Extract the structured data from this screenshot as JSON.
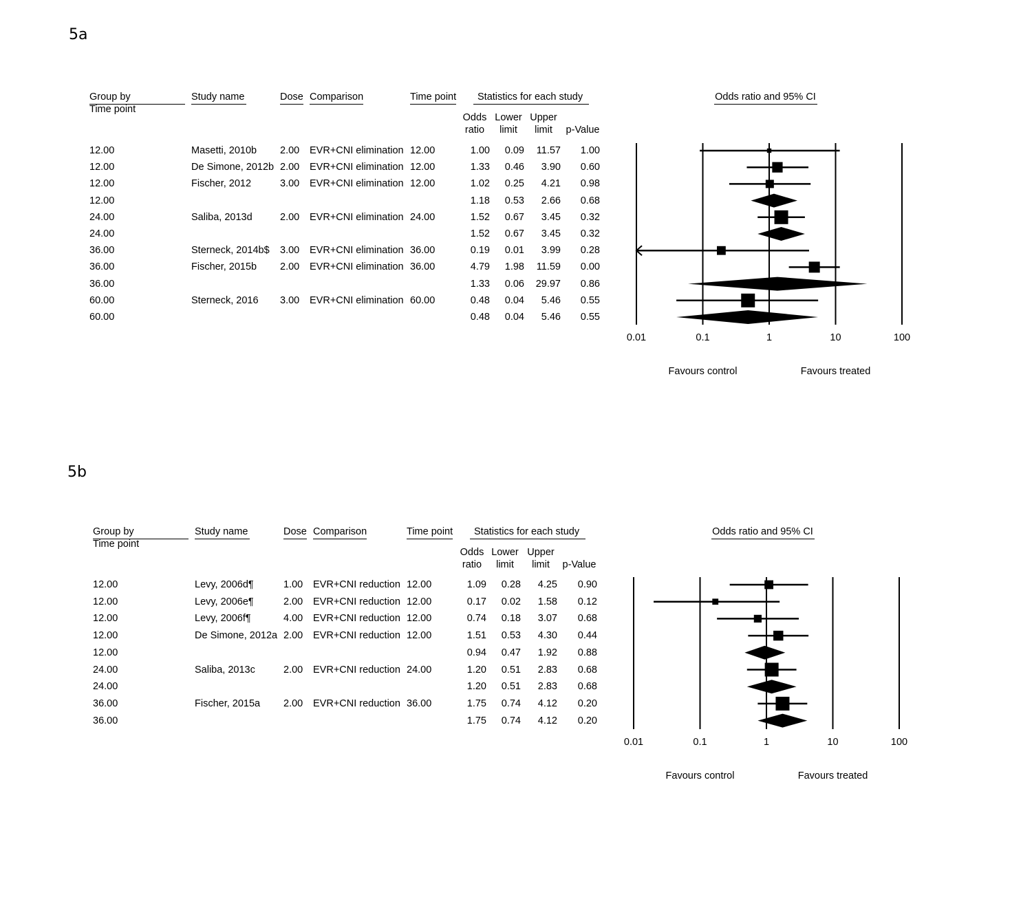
{
  "headers": {
    "group_by": "Group by",
    "time_point_sub": "Time point",
    "study_name": "Study name",
    "dose": "Dose",
    "comparison": "Comparison",
    "time_point": "Time point",
    "stats": "Statistics for each study",
    "odds_top": "Odds",
    "odds_bottom": "ratio",
    "lower_top": "Lower",
    "lower_bottom": "limit",
    "upper_top": "Upper",
    "upper_bottom": "limit",
    "pvalue": "p-Value",
    "plot_title": "Odds ratio and 95% CI"
  },
  "axis": {
    "ticks": [
      "0.01",
      "0.1",
      "1",
      "10",
      "100"
    ],
    "left_label": "Favours control",
    "right_label": "Favours treated"
  },
  "chart_data": [
    {
      "type": "forest",
      "panel": "5a",
      "scale": "log",
      "xlim": [
        0.01,
        100
      ],
      "columns": [
        "Group by Time point",
        "Study name",
        "Dose",
        "Comparison",
        "Time point",
        "Odds ratio",
        "Lower limit",
        "Upper limit",
        "p-Value"
      ],
      "rows": [
        {
          "group": "12.00",
          "study": "Masetti, 2010b",
          "dose": "2.00",
          "comparison": "EVR+CNI elimination",
          "time": "12.00",
          "or": "1.00",
          "lower": "0.09",
          "upper": "11.57",
          "p": "1.00",
          "kind": "study",
          "weight": 0.15
        },
        {
          "group": "12.00",
          "study": "De Simone, 2012b",
          "dose": "2.00",
          "comparison": "EVR+CNI elimination",
          "time": "12.00",
          "or": "1.33",
          "lower": "0.46",
          "upper": "3.90",
          "p": "0.60",
          "kind": "study",
          "weight": 0.7
        },
        {
          "group": "12.00",
          "study": "Fischer, 2012",
          "dose": "3.00",
          "comparison": "EVR+CNI elimination",
          "time": "12.00",
          "or": "1.02",
          "lower": "0.25",
          "upper": "4.21",
          "p": "0.98",
          "kind": "study",
          "weight": 0.5
        },
        {
          "group": "12.00",
          "study": "",
          "dose": "",
          "comparison": "",
          "time": "",
          "or": "1.18",
          "lower": "0.53",
          "upper": "2.66",
          "p": "0.68",
          "kind": "summary"
        },
        {
          "group": "24.00",
          "study": "Saliba, 2013d",
          "dose": "2.00",
          "comparison": "EVR+CNI elimination",
          "time": "24.00",
          "or": "1.52",
          "lower": "0.67",
          "upper": "3.45",
          "p": "0.32",
          "kind": "study",
          "weight": 1.0
        },
        {
          "group": "24.00",
          "study": "",
          "dose": "",
          "comparison": "",
          "time": "",
          "or": "1.52",
          "lower": "0.67",
          "upper": "3.45",
          "p": "0.32",
          "kind": "summary"
        },
        {
          "group": "36.00",
          "study": "Sterneck, 2014b$",
          "dose": "3.00",
          "comparison": "EVR+CNI elimination",
          "time": "36.00",
          "or": "0.19",
          "lower": "0.01",
          "upper": "3.99",
          "p": "0.28",
          "kind": "study",
          "weight": 0.55,
          "arrow_left": true
        },
        {
          "group": "36.00",
          "study": "Fischer, 2015b",
          "dose": "2.00",
          "comparison": "EVR+CNI elimination",
          "time": "36.00",
          "or": "4.79",
          "lower": "1.98",
          "upper": "11.59",
          "p": "0.00",
          "kind": "study",
          "weight": 0.75
        },
        {
          "group": "36.00",
          "study": "",
          "dose": "",
          "comparison": "",
          "time": "",
          "or": "1.33",
          "lower": "0.06",
          "upper": "29.97",
          "p": "0.86",
          "kind": "summary"
        },
        {
          "group": "60.00",
          "study": "Sterneck, 2016",
          "dose": "3.00",
          "comparison": "EVR+CNI elimination",
          "time": "60.00",
          "or": "0.48",
          "lower": "0.04",
          "upper": "5.46",
          "p": "0.55",
          "kind": "study",
          "weight": 1.0
        },
        {
          "group": "60.00",
          "study": "",
          "dose": "",
          "comparison": "",
          "time": "",
          "or": "0.48",
          "lower": "0.04",
          "upper": "5.46",
          "p": "0.55",
          "kind": "summary"
        }
      ]
    },
    {
      "type": "forest",
      "panel": "5b",
      "scale": "log",
      "xlim": [
        0.01,
        100
      ],
      "columns": [
        "Group by Time point",
        "Study name",
        "Dose",
        "Comparison",
        "Time point",
        "Odds ratio",
        "Lower limit",
        "Upper limit",
        "p-Value"
      ],
      "rows": [
        {
          "group": "12.00",
          "study": "Levy, 2006d¶",
          "dose": "1.00",
          "comparison": "EVR+CNI reduction",
          "time": "12.00",
          "or": "1.09",
          "lower": "0.28",
          "upper": "4.25",
          "p": "0.90",
          "kind": "study",
          "weight": 0.55
        },
        {
          "group": "12.00",
          "study": "Levy, 2006e¶",
          "dose": "2.00",
          "comparison": "EVR+CNI reduction",
          "time": "12.00",
          "or": "0.17",
          "lower": "0.02",
          "upper": "1.58",
          "p": "0.12",
          "kind": "study",
          "weight": 0.3
        },
        {
          "group": "12.00",
          "study": "Levy, 2006f¶",
          "dose": "4.00",
          "comparison": "EVR+CNI reduction",
          "time": "12.00",
          "or": "0.74",
          "lower": "0.18",
          "upper": "3.07",
          "p": "0.68",
          "kind": "study",
          "weight": 0.45
        },
        {
          "group": "12.00",
          "study": "De Simone, 2012a",
          "dose": "2.00",
          "comparison": "EVR+CNI reduction",
          "time": "12.00",
          "or": "1.51",
          "lower": "0.53",
          "upper": "4.30",
          "p": "0.44",
          "kind": "study",
          "weight": 0.65
        },
        {
          "group": "12.00",
          "study": "",
          "dose": "",
          "comparison": "",
          "time": "",
          "or": "0.94",
          "lower": "0.47",
          "upper": "1.92",
          "p": "0.88",
          "kind": "summary"
        },
        {
          "group": "24.00",
          "study": "Saliba, 2013c",
          "dose": "2.00",
          "comparison": "EVR+CNI reduction",
          "time": "24.00",
          "or": "1.20",
          "lower": "0.51",
          "upper": "2.83",
          "p": "0.68",
          "kind": "study",
          "weight": 1.0
        },
        {
          "group": "24.00",
          "study": "",
          "dose": "",
          "comparison": "",
          "time": "",
          "or": "1.20",
          "lower": "0.51",
          "upper": "2.83",
          "p": "0.68",
          "kind": "summary"
        },
        {
          "group": "36.00",
          "study": "Fischer, 2015a",
          "dose": "2.00",
          "comparison": "EVR+CNI reduction",
          "time": "36.00",
          "or": "1.75",
          "lower": "0.74",
          "upper": "4.12",
          "p": "0.20",
          "kind": "study",
          "weight": 1.0
        },
        {
          "group": "36.00",
          "study": "",
          "dose": "",
          "comparison": "",
          "time": "",
          "or": "1.75",
          "lower": "0.74",
          "upper": "4.12",
          "p": "0.20",
          "kind": "summary"
        }
      ]
    }
  ]
}
